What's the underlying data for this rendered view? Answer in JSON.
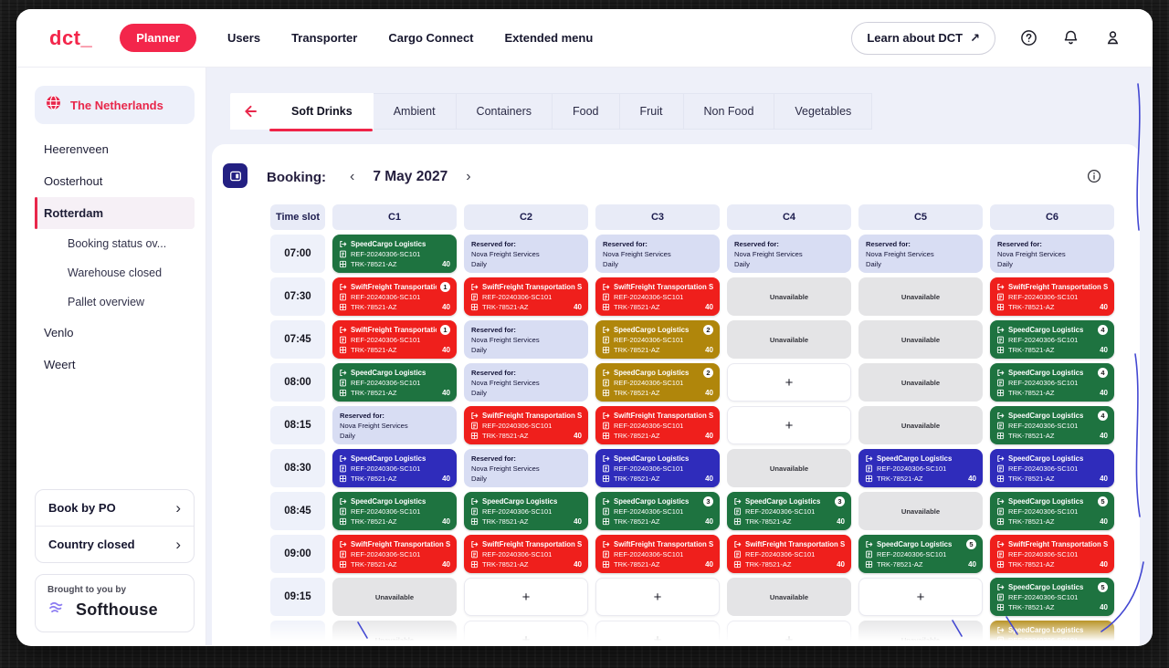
{
  "nav": {
    "logo": "dct_",
    "items": [
      {
        "label": "Planner",
        "active": true
      },
      {
        "label": "Users"
      },
      {
        "label": "Transporter"
      },
      {
        "label": "Cargo Connect"
      },
      {
        "label": "Extended menu"
      }
    ],
    "learn_button": "Learn about DCT",
    "learn_arrow": "↗"
  },
  "sidebar": {
    "country": "The Netherlands",
    "items": [
      {
        "label": "Heerenveen"
      },
      {
        "label": "Oosterhout"
      },
      {
        "label": "Rotterdam",
        "selected": true,
        "children": [
          "Booking status ov...",
          "Warehouse closed",
          "Pallet overview"
        ]
      },
      {
        "label": "Venlo"
      },
      {
        "label": "Weert"
      }
    ],
    "actions": [
      {
        "label": "Book by PO",
        "chevron": "›"
      },
      {
        "label": "Country closed",
        "chevron": "›"
      }
    ],
    "footer": {
      "caption": "Brought to you by",
      "brand": "Softhouse"
    }
  },
  "tabs": {
    "back_icon": "←",
    "active_index": 0,
    "items": [
      "Soft Drinks",
      "Ambient",
      "Containers",
      "Food",
      "Fruit",
      "Non Food",
      "Vegetables"
    ]
  },
  "booking": {
    "label": "Booking:",
    "prev_icon": "‹",
    "date": "7 May 2027",
    "next_icon": "›"
  },
  "grid": {
    "headers": [
      "Time slot",
      "C1",
      "C2",
      "C3",
      "C4",
      "C5",
      "C6"
    ],
    "colors": {
      "green": "#1e7340",
      "red": "#ef1f1c",
      "blue": "#2f2cbb",
      "olive": "#b0860b"
    },
    "card_common": {
      "ref": "REF-20240306-SC101",
      "trk": "TRK-78521-AZ",
      "qty": "40"
    },
    "reserved": {
      "title": "Reserved for:",
      "company": "Nova Freight Services",
      "schedule": "Daily"
    },
    "unavailable_label": "Unavailable",
    "empty_label": "+",
    "rows": [
      {
        "time": "07:00",
        "cells": [
          {
            "type": "card",
            "color": "green",
            "name": "SpeedCargo Logistics"
          },
          {
            "type": "reserved"
          },
          {
            "type": "reserved"
          },
          {
            "type": "reserved"
          },
          {
            "type": "reserved"
          },
          {
            "type": "reserved"
          }
        ]
      },
      {
        "time": "07:30",
        "cells": [
          {
            "type": "card",
            "color": "red",
            "name": "SwiftFreight Transportation...",
            "badge": "1"
          },
          {
            "type": "card",
            "color": "red",
            "name": "SwiftFreight Transportation Solu..."
          },
          {
            "type": "card",
            "color": "red",
            "name": "SwiftFreight Transportation Solu..."
          },
          {
            "type": "unavailable"
          },
          {
            "type": "unavailable"
          },
          {
            "type": "card",
            "color": "red",
            "name": "SwiftFreight Transportation Solu..."
          }
        ]
      },
      {
        "time": "07:45",
        "cells": [
          {
            "type": "card",
            "color": "red",
            "name": "SwiftFreight Transportation...",
            "badge": "1"
          },
          {
            "type": "reserved"
          },
          {
            "type": "card",
            "color": "olive",
            "name": "SpeedCargo Logistics",
            "badge": "2"
          },
          {
            "type": "unavailable"
          },
          {
            "type": "unavailable"
          },
          {
            "type": "card",
            "color": "green",
            "name": "SpeedCargo Logistics",
            "badge": "4"
          }
        ]
      },
      {
        "time": "08:00",
        "cells": [
          {
            "type": "card",
            "color": "green",
            "name": "SpeedCargo Logistics"
          },
          {
            "type": "reserved"
          },
          {
            "type": "card",
            "color": "olive",
            "name": "SpeedCargo Logistics",
            "badge": "2"
          },
          {
            "type": "empty"
          },
          {
            "type": "unavailable"
          },
          {
            "type": "card",
            "color": "green",
            "name": "SpeedCargo Logistics",
            "badge": "4"
          }
        ]
      },
      {
        "time": "08:15",
        "cells": [
          {
            "type": "reserved"
          },
          {
            "type": "card",
            "color": "red",
            "name": "SwiftFreight Transportation Solu..."
          },
          {
            "type": "card",
            "color": "red",
            "name": "SwiftFreight Transportation Solu..."
          },
          {
            "type": "empty"
          },
          {
            "type": "unavailable"
          },
          {
            "type": "card",
            "color": "green",
            "name": "SpeedCargo Logistics",
            "badge": "4"
          }
        ]
      },
      {
        "time": "08:30",
        "cells": [
          {
            "type": "card",
            "color": "blue",
            "name": "SpeedCargo Logistics"
          },
          {
            "type": "reserved"
          },
          {
            "type": "card",
            "color": "blue",
            "name": "SpeedCargo Logistics"
          },
          {
            "type": "unavailable"
          },
          {
            "type": "card",
            "color": "blue",
            "name": "SpeedCargo Logistics"
          },
          {
            "type": "card",
            "color": "blue",
            "name": "SpeedCargo Logistics"
          }
        ]
      },
      {
        "time": "08:45",
        "cells": [
          {
            "type": "card",
            "color": "green",
            "name": "SpeedCargo Logistics"
          },
          {
            "type": "card",
            "color": "green",
            "name": "SpeedCargo Logistics"
          },
          {
            "type": "card",
            "color": "green",
            "name": "SpeedCargo Logistics",
            "badge": "3"
          },
          {
            "type": "card",
            "color": "green",
            "name": "SpeedCargo Logistics",
            "badge": "3"
          },
          {
            "type": "unavailable"
          },
          {
            "type": "card",
            "color": "green",
            "name": "SpeedCargo Logistics",
            "badge": "5"
          }
        ]
      },
      {
        "time": "09:00",
        "cells": [
          {
            "type": "card",
            "color": "red",
            "name": "SwiftFreight Transportation Solu..."
          },
          {
            "type": "card",
            "color": "red",
            "name": "SwiftFreight Transportation Solu..."
          },
          {
            "type": "card",
            "color": "red",
            "name": "SwiftFreight Transportation Solu..."
          },
          {
            "type": "card",
            "color": "red",
            "name": "SwiftFreight Transportation Solu..."
          },
          {
            "type": "card",
            "color": "green",
            "name": "SpeedCargo Logistics",
            "badge": "5"
          },
          {
            "type": "card",
            "color": "red",
            "name": "SwiftFreight Transportation Solu..."
          }
        ]
      },
      {
        "time": "09:15",
        "cells": [
          {
            "type": "unavailable"
          },
          {
            "type": "empty"
          },
          {
            "type": "empty"
          },
          {
            "type": "unavailable"
          },
          {
            "type": "empty"
          },
          {
            "type": "card",
            "color": "green",
            "name": "SpeedCargo Logistics",
            "badge": "5"
          }
        ]
      },
      {
        "time": "",
        "cells": [
          {
            "type": "unavailable"
          },
          {
            "type": "empty"
          },
          {
            "type": "empty"
          },
          {
            "type": "empty"
          },
          {
            "type": "unavailable"
          },
          {
            "type": "card",
            "color": "olive",
            "name": "SpeedCargo Logistics"
          }
        ]
      }
    ]
  }
}
